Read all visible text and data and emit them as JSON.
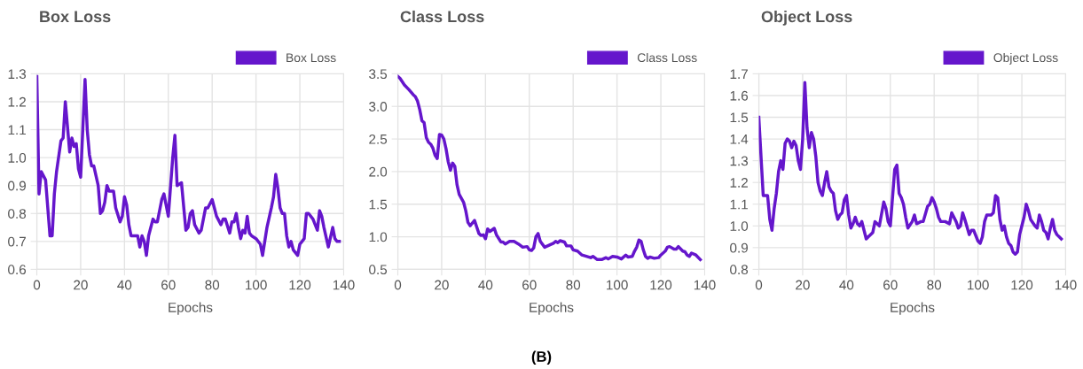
{
  "chart_data": [
    {
      "type": "line",
      "title": "Box Loss",
      "xlabel": "Epochs",
      "xlim": [
        0,
        140
      ],
      "xticks": [
        0,
        20,
        40,
        60,
        80,
        100,
        120,
        140
      ],
      "ylim": [
        0.6,
        1.3
      ],
      "yticks": [
        0.6,
        0.7,
        0.8,
        0.9,
        {
          "value": 1,
          "label": "1.0"
        },
        1.1,
        1.2,
        1.3
      ],
      "grid": true,
      "legend": "top right",
      "marker": "none",
      "line_style": "solid",
      "series": [
        {
          "name": "Box Loss",
          "color": "#6516cc",
          "x": [
            0,
            1,
            2,
            4,
            6,
            7,
            8,
            9,
            11,
            12,
            13,
            15,
            16,
            17,
            18,
            19,
            20,
            22,
            23,
            24,
            25,
            26,
            28,
            29,
            30,
            31,
            32,
            33,
            35,
            36,
            38,
            39,
            40,
            41,
            42,
            43,
            46,
            47,
            48,
            49,
            50,
            51,
            53,
            54,
            55,
            57,
            58,
            60,
            62,
            63,
            64,
            66,
            68,
            69,
            70,
            71,
            72,
            74,
            75,
            77,
            78,
            80,
            82,
            84,
            85,
            86,
            88,
            89,
            90,
            91,
            92,
            93,
            94,
            95,
            96,
            97,
            98,
            100,
            102,
            103,
            105,
            107,
            108,
            109,
            110,
            111,
            112,
            113,
            114,
            115,
            116,
            117,
            119,
            120,
            121,
            122,
            123,
            124,
            126,
            128,
            129,
            130,
            131,
            133,
            135,
            136,
            137,
            138
          ],
          "values": [
            1.29,
            0.87,
            0.95,
            0.92,
            0.72,
            0.72,
            0.87,
            0.95,
            1.06,
            1.07,
            1.2,
            1.02,
            1.07,
            1.04,
            1.05,
            0.96,
            0.93,
            1.28,
            1.1,
            1.01,
            0.97,
            0.97,
            0.9,
            0.8,
            0.81,
            0.84,
            0.9,
            0.88,
            0.88,
            0.82,
            0.77,
            0.79,
            0.86,
            0.83,
            0.76,
            0.72,
            0.72,
            0.68,
            0.72,
            0.7,
            0.65,
            0.72,
            0.78,
            0.77,
            0.77,
            0.85,
            0.87,
            0.79,
            1.0,
            1.08,
            0.9,
            0.91,
            0.74,
            0.75,
            0.8,
            0.81,
            0.76,
            0.73,
            0.74,
            0.82,
            0.82,
            0.85,
            0.79,
            0.76,
            0.78,
            0.78,
            0.73,
            0.77,
            0.77,
            0.8,
            0.75,
            0.71,
            0.74,
            0.73,
            0.79,
            0.73,
            0.72,
            0.71,
            0.69,
            0.65,
            0.75,
            0.82,
            0.86,
            0.94,
            0.89,
            0.82,
            0.8,
            0.8,
            0.72,
            0.68,
            0.7,
            0.67,
            0.65,
            0.69,
            0.7,
            0.71,
            0.8,
            0.8,
            0.78,
            0.74,
            0.81,
            0.79,
            0.75,
            0.68,
            0.75,
            0.71,
            0.7,
            0.7
          ]
        }
      ]
    },
    {
      "type": "line",
      "title": "Class Loss",
      "xlabel": "Epochs",
      "xlim": [
        0,
        140
      ],
      "xticks": [
        0,
        20,
        40,
        60,
        80,
        100,
        120,
        140
      ],
      "ylim": [
        0.5,
        3.5
      ],
      "yticks": [
        0.5,
        {
          "value": 1,
          "label": "1.0"
        },
        1.5,
        {
          "value": 2,
          "label": "2.0"
        },
        2.5,
        {
          "value": 3,
          "label": "3.0"
        },
        3.5
      ],
      "grid": true,
      "legend": "top right",
      "marker": "none",
      "line_style": "solid",
      "annotations": [
        "(B)"
      ],
      "series": [
        {
          "name": "Class Loss",
          "color": "#6516cc",
          "x": [
            0,
            1,
            3,
            5,
            7,
            8,
            9,
            10,
            11,
            12,
            13,
            14,
            15,
            16,
            17,
            18,
            19,
            20,
            21,
            22,
            23,
            24,
            25,
            26,
            27,
            28,
            30,
            31,
            32,
            33,
            35,
            36,
            37,
            38,
            39,
            40,
            41,
            42,
            44,
            45,
            47,
            48,
            49,
            51,
            53,
            55,
            57,
            59,
            60,
            61,
            62,
            63,
            64,
            65,
            67,
            69,
            71,
            72,
            73,
            74,
            76,
            77,
            79,
            80,
            82,
            84,
            86,
            88,
            89,
            91,
            93,
            95,
            96,
            98,
            100,
            102,
            104,
            105,
            107,
            108,
            109,
            110,
            111,
            112,
            113,
            114,
            115,
            117,
            119,
            120,
            122,
            123,
            124,
            126,
            127,
            128,
            130,
            131,
            132,
            133,
            134,
            136,
            138
          ],
          "values": [
            3.46,
            3.43,
            3.33,
            3.26,
            3.18,
            3.15,
            3.08,
            2.95,
            2.78,
            2.75,
            2.52,
            2.45,
            2.42,
            2.36,
            2.25,
            2.2,
            2.57,
            2.56,
            2.5,
            2.35,
            2.15,
            2.02,
            2.13,
            2.08,
            1.8,
            1.65,
            1.53,
            1.4,
            1.22,
            1.17,
            1.25,
            1.15,
            1.05,
            1.02,
            1.03,
            0.97,
            1.12,
            1.08,
            1.13,
            1.03,
            0.92,
            0.92,
            0.89,
            0.93,
            0.93,
            0.89,
            0.84,
            0.85,
            0.8,
            0.79,
            0.83,
            1.0,
            1.05,
            0.93,
            0.84,
            0.87,
            0.9,
            0.93,
            0.91,
            0.94,
            0.92,
            0.86,
            0.86,
            0.8,
            0.78,
            0.72,
            0.7,
            0.68,
            0.7,
            0.65,
            0.65,
            0.68,
            0.66,
            0.7,
            0.69,
            0.66,
            0.72,
            0.69,
            0.7,
            0.78,
            0.84,
            0.95,
            0.93,
            0.8,
            0.7,
            0.67,
            0.69,
            0.67,
            0.68,
            0.72,
            0.78,
            0.84,
            0.85,
            0.81,
            0.81,
            0.85,
            0.78,
            0.77,
            0.72,
            0.7,
            0.75,
            0.72,
            0.65
          ]
        }
      ]
    },
    {
      "type": "line",
      "title": "Object Loss",
      "xlabel": "Epochs",
      "xlim": [
        0,
        140
      ],
      "xticks": [
        0,
        20,
        40,
        60,
        80,
        100,
        120,
        140
      ],
      "ylim": [
        0.8,
        1.7
      ],
      "yticks": [
        0.8,
        0.9,
        {
          "value": 1,
          "label": "1.0"
        },
        1.1,
        1.2,
        1.3,
        1.4,
        1.5,
        1.6,
        1.7
      ],
      "grid": true,
      "legend": "top right",
      "marker": "none",
      "line_style": "solid",
      "series": [
        {
          "name": "Object Loss",
          "color": "#6516cc",
          "x": [
            0,
            2,
            4,
            5,
            6,
            7,
            8,
            9,
            10,
            11,
            12,
            13,
            14,
            15,
            16,
            17,
            18,
            19,
            20,
            21,
            22,
            23,
            24,
            25,
            26,
            27,
            28,
            29,
            30,
            31,
            32,
            33,
            34,
            35,
            36,
            37,
            38,
            39,
            40,
            41,
            42,
            43,
            44,
            45,
            46,
            47,
            48,
            49,
            50,
            52,
            53,
            55,
            57,
            58,
            59,
            60,
            62,
            63,
            64,
            65,
            66,
            67,
            68,
            70,
            71,
            72,
            74,
            75,
            77,
            78,
            79,
            80,
            81,
            82,
            83,
            85,
            87,
            88,
            90,
            91,
            92,
            93,
            94,
            96,
            97,
            98,
            100,
            101,
            102,
            103,
            104,
            106,
            107,
            108,
            109,
            110,
            111,
            112,
            113,
            114,
            115,
            116,
            117,
            118,
            119,
            120,
            121,
            122,
            123,
            124,
            126,
            127,
            128,
            129,
            130,
            131,
            132,
            133,
            134,
            135,
            136,
            137,
            138
          ],
          "values": [
            1.5,
            1.14,
            1.14,
            1.03,
            0.98,
            1.08,
            1.15,
            1.25,
            1.3,
            1.26,
            1.38,
            1.4,
            1.39,
            1.36,
            1.39,
            1.37,
            1.3,
            1.26,
            1.4,
            1.66,
            1.45,
            1.36,
            1.43,
            1.4,
            1.32,
            1.2,
            1.16,
            1.14,
            1.2,
            1.25,
            1.18,
            1.16,
            1.15,
            1.07,
            1.03,
            1.05,
            1.06,
            1.12,
            1.14,
            1.05,
            0.99,
            1.01,
            1.04,
            1.01,
            1.0,
            1.02,
            0.98,
            0.94,
            0.95,
            0.97,
            1.02,
            1.0,
            1.11,
            1.08,
            1.02,
            1.0,
            1.26,
            1.28,
            1.15,
            1.13,
            1.1,
            1.04,
            0.99,
            1.02,
            1.05,
            1.01,
            1.02,
            1.02,
            1.09,
            1.1,
            1.13,
            1.11,
            1.08,
            1.04,
            1.02,
            1.02,
            1.01,
            1.06,
            1.02,
            0.99,
            1.0,
            1.06,
            1.03,
            0.96,
            0.98,
            0.98,
            0.93,
            0.92,
            0.95,
            1.02,
            1.05,
            1.05,
            1.06,
            1.14,
            1.13,
            1.03,
            0.98,
            1.0,
            0.95,
            0.92,
            0.91,
            0.88,
            0.87,
            0.88,
            0.96,
            1.0,
            1.04,
            1.1,
            1.07,
            1.03,
            1.0,
            0.99,
            1.05,
            1.02,
            0.98,
            0.97,
            0.94,
            0.99,
            1.03,
            0.98,
            0.96,
            0.95,
            0.94
          ]
        }
      ]
    }
  ]
}
